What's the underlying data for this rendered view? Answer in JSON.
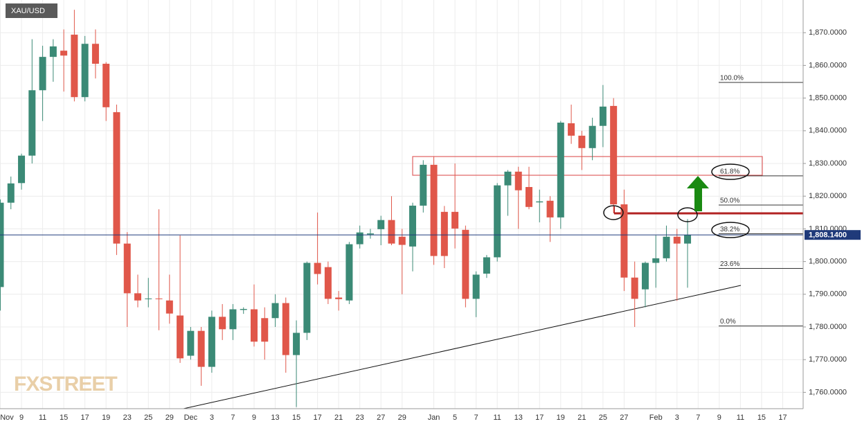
{
  "chart_data": {
    "type": "candlestick",
    "title": "XAU/USD",
    "watermark": "FXSTREET",
    "categories": [
      "Nov",
      null,
      "9",
      null,
      "11",
      null,
      "15",
      null,
      "17",
      null,
      "19",
      null,
      "23",
      null,
      "25",
      null,
      "29",
      null,
      "Dec",
      null,
      "3",
      null,
      "7",
      null,
      "9",
      null,
      "13",
      null,
      "15",
      null,
      "17",
      null,
      "21",
      null,
      "23",
      null,
      "27",
      null,
      "29",
      null,
      null,
      "Jan",
      null,
      "5",
      null,
      "7",
      null,
      "11",
      null,
      "13",
      null,
      "17",
      null,
      "19",
      null,
      "21",
      null,
      "25",
      null,
      "27",
      null,
      null,
      "Feb",
      null,
      "3",
      null,
      "7",
      null,
      "9",
      null,
      "11",
      null,
      "15",
      null,
      "17"
    ],
    "open": [
      1792.2,
      1818.0,
      1824.0,
      1832.4,
      1852.4,
      1862.6,
      1864.5,
      1869.4,
      1850.3,
      1866.6,
      1860.5,
      1845.7,
      1805.5,
      1790.3,
      1788.5,
      1788.7,
      1788.1,
      1783.5,
      1771.2,
      1778.8,
      1767.8,
      1783.1,
      1779.3,
      1785.2,
      1785.4,
      1782.7,
      1782.7,
      1787.3,
      1771.4,
      1778.2,
      1799.6,
      1798.3,
      1789.0,
      1788.1,
      1805.3,
      1808.3,
      1809.9,
      1812.7,
      1807.6,
      1804.6,
      1817.1,
      1829.6,
      1815.2,
      1815.2,
      1809.7,
      1788.6,
      1796.3,
      1801.3,
      1823.3,
      1827.5,
      1822.8,
      1818.1,
      1818.6,
      1813.5,
      1842.3,
      1838.5,
      1834.7,
      1841.5,
      1847.6,
      1817.5,
      1795.1,
      1791.5,
      1799.6,
      1801.0,
      1807.6,
      1805.5,
      null,
      null,
      null,
      null,
      null,
      null,
      null,
      null,
      null
    ],
    "high": [
      1819,
      1826,
      1833,
      1868,
      1866,
      1868,
      1871,
      1877,
      1869,
      1871,
      1861,
      1848,
      1809,
      1796,
      1795,
      1816,
      1796,
      1808,
      1780,
      1780,
      1785,
      1787,
      1787,
      1786,
      1793,
      1786,
      1790,
      1789,
      1782,
      1800,
      1815,
      1800,
      1791,
      1806,
      1811,
      1810,
      1814,
      1820,
      1810,
      1818,
      1831,
      1832,
      1817,
      1830,
      1811,
      1797,
      1802,
      1824,
      1828,
      1829,
      1829,
      1822,
      1820,
      1843,
      1848,
      1840,
      1844,
      1854,
      1850,
      1822,
      1800,
      1800,
      1808,
      1811,
      1810,
      1813,
      null,
      null,
      null,
      null,
      null,
      null,
      null,
      null,
      null
    ],
    "low": [
      1785,
      1816,
      1822,
      1830,
      1843,
      1855,
      1852,
      1849,
      1849,
      1856,
      1843,
      1802,
      1780,
      1786,
      1786,
      1779,
      1781,
      1769,
      1770,
      1762,
      1766,
      1776,
      1776,
      1784,
      1774,
      1770,
      1780,
      1766,
      1755.5,
      1776,
      1793,
      1787,
      1785,
      1787,
      1804,
      1807,
      1805,
      1805,
      1790,
      1797,
      1815,
      1799,
      1798,
      1804,
      1786,
      1783,
      1795,
      1800,
      1814,
      1810,
      1816,
      1812,
      1806,
      1810,
      1836,
      1828,
      1831,
      1835,
      1815,
      1791,
      1780,
      1786,
      1792,
      1800,
      1788,
      1792,
      null,
      null,
      null,
      null,
      null,
      null,
      null,
      null,
      null
    ],
    "close": [
      1818.0,
      1823.9,
      1832.4,
      1852.4,
      1862.6,
      1865.8,
      1863.0,
      1850.3,
      1866.6,
      1860.5,
      1847.2,
      1805.5,
      1790.3,
      1788.1,
      1788.7,
      1788.6,
      1784.1,
      1770.4,
      1778.8,
      1767.8,
      1783.1,
      1779.3,
      1785.4,
      1785.5,
      1775.5,
      1775.5,
      1787.3,
      1771.4,
      1778.2,
      1799.6,
      1796.2,
      1788.6,
      1788.5,
      1805.3,
      1808.9,
      1808.6,
      1812.7,
      1805.5,
      1805.1,
      1817.1,
      1829.6,
      1801.7,
      1801.7,
      1810.1,
      1788.6,
      1796.0,
      1801.3,
      1823.3,
      1827.5,
      1821.8,
      1816.7,
      1818.4,
      1813.5,
      1842.5,
      1838.5,
      1834.7,
      1841.5,
      1847.4,
      1817.5,
      1795.1,
      1788.6,
      1799.6,
      1801.0,
      1807.6,
      1805.5,
      1808.14,
      null,
      null,
      null,
      null,
      null,
      null,
      null,
      null,
      null
    ],
    "up_color": "#3b8a76",
    "down_color": "#e0574a",
    "ylim": [
      1755,
      1880
    ],
    "yticks": [
      {
        "value": 1760,
        "label": "1,760.0000"
      },
      {
        "value": 1770,
        "label": "1,770.0000"
      },
      {
        "value": 1780,
        "label": "1,780.0000"
      },
      {
        "value": 1790,
        "label": "1,790.0000"
      },
      {
        "value": 1800,
        "label": "1,800.0000"
      },
      {
        "value": 1810,
        "label": "1,810.0000"
      },
      {
        "value": 1820,
        "label": "1,820.0000"
      },
      {
        "value": 1830,
        "label": "1,830.0000"
      },
      {
        "value": 1840,
        "label": "1,840.0000"
      },
      {
        "value": 1850,
        "label": "1,850.0000"
      },
      {
        "value": 1860,
        "label": "1,860.0000"
      },
      {
        "value": 1870,
        "label": "1,870.0000"
      }
    ],
    "grid": true,
    "last_price": {
      "value": 1808.14,
      "label": "1,808.1400"
    },
    "fib_levels": [
      {
        "label": "100.0%",
        "value": 1854.8
      },
      {
        "label": "61.8%",
        "value": 1826.2
      },
      {
        "label": "50.0%",
        "value": 1817.3
      },
      {
        "label": "38.2%",
        "value": 1808.5
      },
      {
        "label": "23.6%",
        "value": 1797.9
      },
      {
        "label": "0.0%",
        "value": 1780.3
      }
    ]
  }
}
